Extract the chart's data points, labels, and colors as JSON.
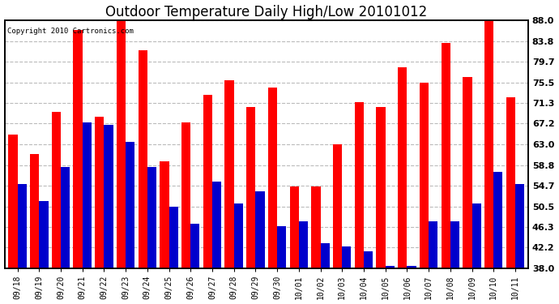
{
  "title": "Outdoor Temperature Daily High/Low 20101012",
  "copyright": "Copyright 2010 Cartronics.com",
  "dates": [
    "09/18",
    "09/19",
    "09/20",
    "09/21",
    "09/22",
    "09/23",
    "09/24",
    "09/25",
    "09/26",
    "09/27",
    "09/28",
    "09/29",
    "09/30",
    "10/01",
    "10/02",
    "10/03",
    "10/04",
    "10/05",
    "10/06",
    "10/07",
    "10/08",
    "10/09",
    "10/10",
    "10/11"
  ],
  "highs": [
    65.0,
    61.0,
    69.5,
    86.0,
    68.5,
    88.5,
    82.0,
    59.5,
    67.5,
    73.0,
    76.0,
    70.5,
    74.5,
    54.5,
    54.5,
    63.0,
    71.5,
    70.5,
    78.5,
    75.5,
    83.5,
    76.5,
    88.0,
    72.5
  ],
  "lows": [
    55.0,
    51.5,
    58.5,
    67.5,
    67.0,
    63.5,
    58.5,
    50.5,
    47.0,
    55.5,
    51.0,
    53.5,
    46.5,
    47.5,
    43.0,
    42.5,
    41.5,
    38.5,
    38.5,
    47.5,
    47.5,
    51.0,
    57.5,
    55.0
  ],
  "high_color": "#ff0000",
  "low_color": "#0000cc",
  "ymin": 38.0,
  "ymax": 88.0,
  "yticks": [
    38.0,
    42.2,
    46.3,
    50.5,
    54.7,
    58.8,
    63.0,
    67.2,
    71.3,
    75.5,
    79.7,
    83.8,
    88.0
  ],
  "bg_color": "#ffffff",
  "plot_bg_color": "#ffffff",
  "grid_color": "#bbbbbb",
  "title_fontsize": 12,
  "bar_width": 0.42,
  "fig_width": 6.9,
  "fig_height": 3.75,
  "dpi": 100
}
